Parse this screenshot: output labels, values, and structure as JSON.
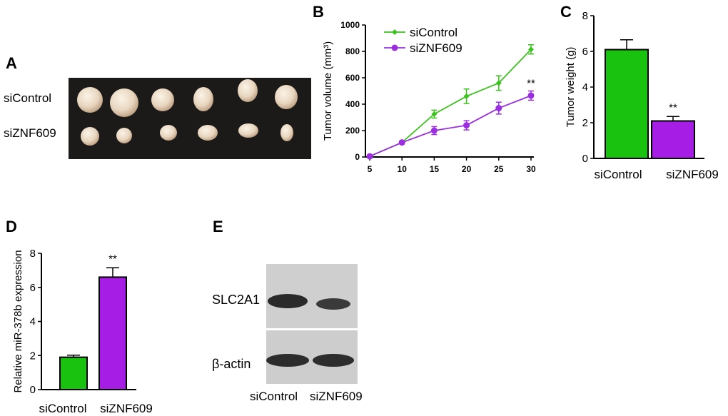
{
  "panels": {
    "A": {
      "letter": "A",
      "row_labels": [
        "siControl",
        "siZNF609"
      ]
    },
    "B": {
      "letter": "B"
    },
    "C": {
      "letter": "C"
    },
    "D": {
      "letter": "D"
    },
    "E": {
      "letter": "E",
      "band_labels": [
        "SLC2A1",
        "β-actin"
      ],
      "lane_labels": [
        "siControl",
        "siZNF609"
      ]
    }
  },
  "colors": {
    "green": "#19c20f",
    "purple": "#a61ee6",
    "line_green": "#3cc21e",
    "line_purple": "#9b2fe0"
  },
  "chart_data": [
    {
      "id": "B",
      "type": "line",
      "x": [
        5,
        10,
        15,
        20,
        25,
        30
      ],
      "xticks": [
        "5",
        "10",
        "15",
        "20",
        "25",
        "30"
      ],
      "ylabel": "Tumor volume (mm³)",
      "ylim": [
        0,
        1000
      ],
      "yticks": [
        "0",
        "200",
        "400",
        "600",
        "800",
        "1000"
      ],
      "legend_position": "top-left",
      "series": [
        {
          "name": "siControl",
          "marker": "diamond",
          "values": [
            5,
            110,
            325,
            460,
            560,
            815
          ],
          "errors": [
            0,
            10,
            30,
            55,
            55,
            35
          ]
        },
        {
          "name": "siZNF609",
          "marker": "circle",
          "values": [
            5,
            110,
            200,
            240,
            370,
            465
          ],
          "errors": [
            0,
            10,
            30,
            35,
            45,
            35
          ]
        }
      ],
      "annotations": [
        {
          "text": "**",
          "x": 30
        }
      ]
    },
    {
      "id": "C",
      "type": "bar",
      "categories": [
        "siControl",
        "siZNF609"
      ],
      "values": [
        6.1,
        2.1
      ],
      "errors": [
        0.55,
        0.25
      ],
      "ylabel": "Tumor weight (g)",
      "ylim": [
        0,
        8
      ],
      "yticks": [
        "0",
        "2",
        "4",
        "6",
        "8"
      ],
      "annotations": [
        {
          "text": "**",
          "category": "siZNF609"
        }
      ]
    },
    {
      "id": "D",
      "type": "bar",
      "categories": [
        "siControl",
        "siZNF609"
      ],
      "values": [
        1.9,
        6.6
      ],
      "errors": [
        0.12,
        0.55
      ],
      "ylabel": "Relative miR-378b expression",
      "ylim": [
        0,
        8
      ],
      "yticks": [
        "0",
        "2",
        "4",
        "6",
        "8"
      ],
      "annotations": [
        {
          "text": "**",
          "category": "siZNF609"
        }
      ]
    }
  ]
}
